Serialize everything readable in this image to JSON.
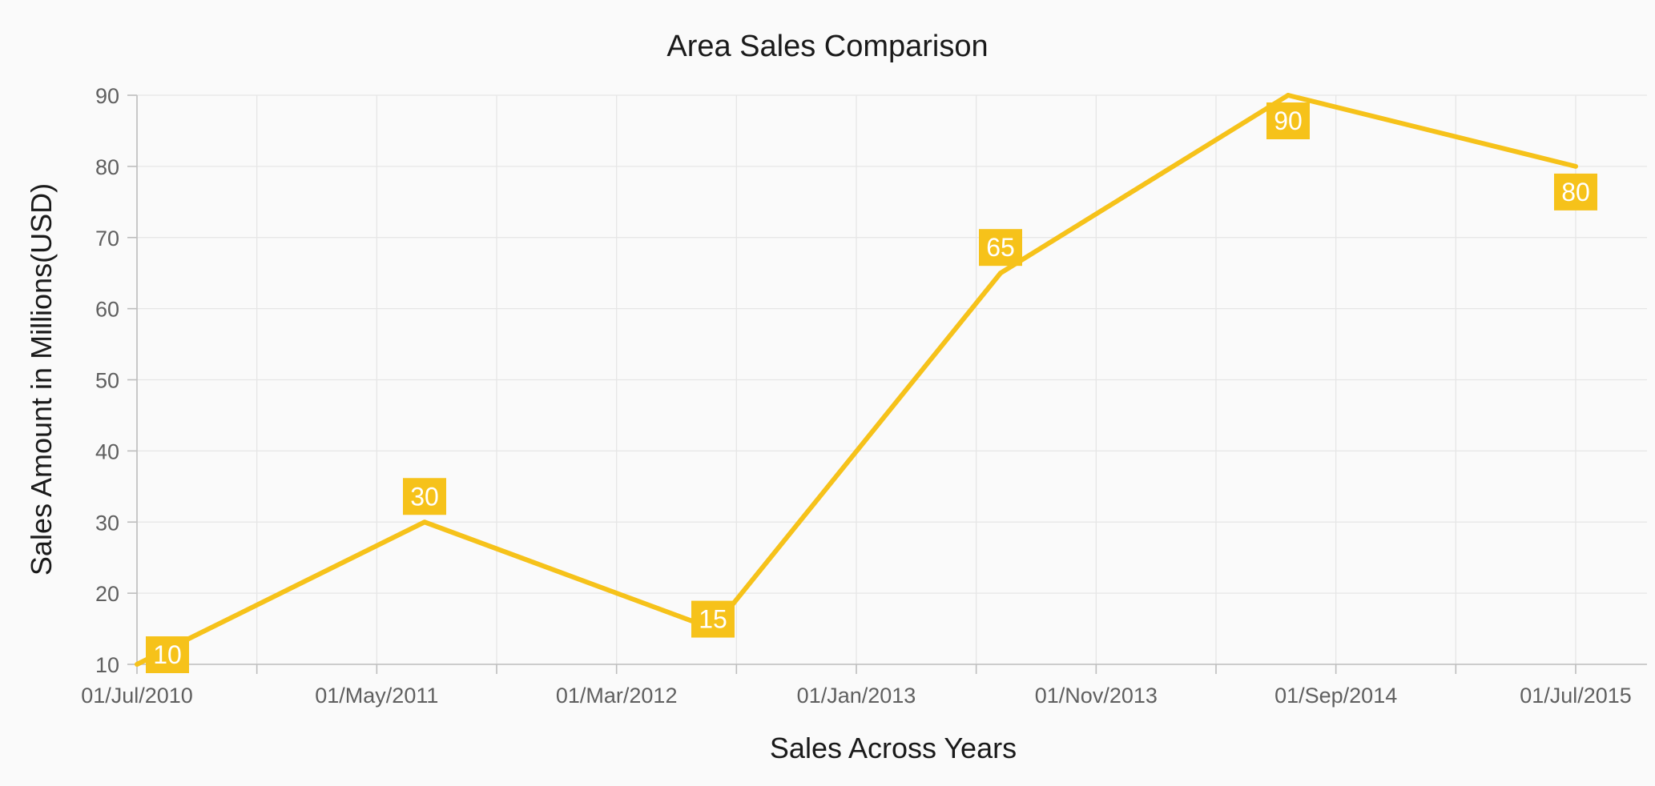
{
  "colors": {
    "background": "#fafafa",
    "series": "#f6c21a",
    "label_text": "#ffffff",
    "grid": "#e6e6e6"
  },
  "chart_data": {
    "type": "line",
    "title": "Area Sales Comparison",
    "xlabel": "Sales Across Years",
    "ylabel": "Sales Amount in Millions(USD)",
    "x_tick_labels": [
      "01/Jul/2010",
      "01/May/2011",
      "01/Mar/2012",
      "01/Jan/2013",
      "01/Nov/2013",
      "01/Sep/2014",
      "01/Jul/2015"
    ],
    "x_range": [
      "2010-07-01",
      "2015-07-01"
    ],
    "y_ticks": [
      10,
      20,
      30,
      40,
      50,
      60,
      70,
      80,
      90
    ],
    "ylim": [
      10,
      90
    ],
    "grid": true,
    "legend": false,
    "series": [
      {
        "points": [
          {
            "x": "2010-07-01",
            "y": 10,
            "label": "10"
          },
          {
            "x": "2011-07-01",
            "y": 30,
            "label": "30"
          },
          {
            "x": "2012-07-01",
            "y": 15,
            "label": "15"
          },
          {
            "x": "2013-07-01",
            "y": 65,
            "label": "65"
          },
          {
            "x": "2014-07-01",
            "y": 90,
            "label": "90"
          },
          {
            "x": "2015-07-01",
            "y": 80,
            "label": "80"
          }
        ]
      }
    ]
  }
}
